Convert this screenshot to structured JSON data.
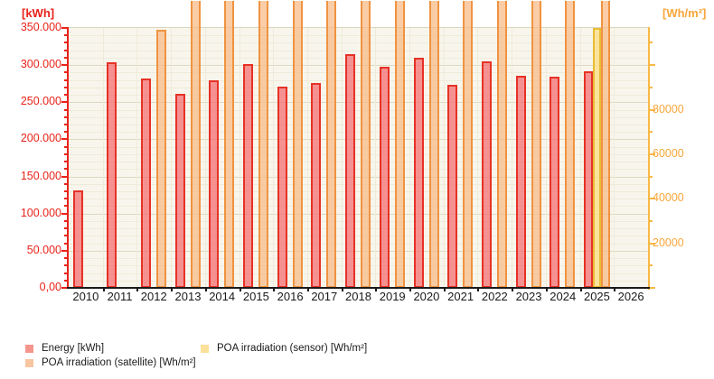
{
  "chart_data": {
    "type": "bar",
    "title": "",
    "x_categories": [
      "2010",
      "2011",
      "2012",
      "2013",
      "2014",
      "2015",
      "2016",
      "2017",
      "2018",
      "2019",
      "2020",
      "2021",
      "2022",
      "2023",
      "2024",
      "2025",
      "2026"
    ],
    "left_axis": {
      "unit_label": "[kWh]",
      "color": "#e8231a",
      "min": 0,
      "max": 350000,
      "major_step": 50000,
      "minor_step": 10000,
      "tick_labels": [
        "350.000",
        "300.000",
        "250.000",
        "200.000",
        "150.000",
        "100.000",
        "50.000",
        "0,00"
      ],
      "grid": true
    },
    "right_axis": {
      "unit_label": "[Wh/m²]",
      "color": "#f9a63a",
      "min": 0,
      "max": 116667,
      "label_step": 20000,
      "minor_step": 10000,
      "tick_labels": [
        "80000",
        "60000",
        "40000",
        "20000"
      ]
    },
    "series": [
      {
        "name": "Energy [kWh]",
        "axis": "left",
        "type": "energy",
        "values": [
          131000,
          304000,
          282000,
          261000,
          280000,
          302000,
          271000,
          276000,
          315000,
          298000,
          310000,
          273000,
          305000,
          286000,
          284000,
          292000,
          null
        ]
      },
      {
        "name": "POA irradiation (satellite) [Wh/m²]",
        "axis": "right",
        "type": "satellite",
        "values": [
          null,
          null,
          116000,
          "clipped",
          "clipped",
          "clipped",
          "clipped",
          "clipped",
          "clipped",
          "clipped",
          "clipped",
          "clipped",
          "clipped",
          "clipped",
          "clipped",
          "clipped",
          null
        ]
      },
      {
        "name": "POA irradiation (sensor) [Wh/m²]",
        "axis": "right",
        "type": "sensor",
        "values": [
          null,
          null,
          null,
          null,
          null,
          null,
          null,
          null,
          null,
          null,
          null,
          null,
          null,
          null,
          null,
          116500,
          null
        ]
      }
    ],
    "notes": "Values marked clipped extend past the top edge of the image (above right-axis maximum).",
    "legend_position": "bottom"
  },
  "legend": {
    "items": [
      {
        "label": "Energy [kWh]",
        "color": "#f5958c"
      },
      {
        "label": "POA irradiation (satellite) [Wh/m²]",
        "color": "#f7c5a0"
      },
      {
        "label": "POA irradiation (sensor) [Wh/m²]",
        "color": "#fbe19a"
      }
    ]
  }
}
